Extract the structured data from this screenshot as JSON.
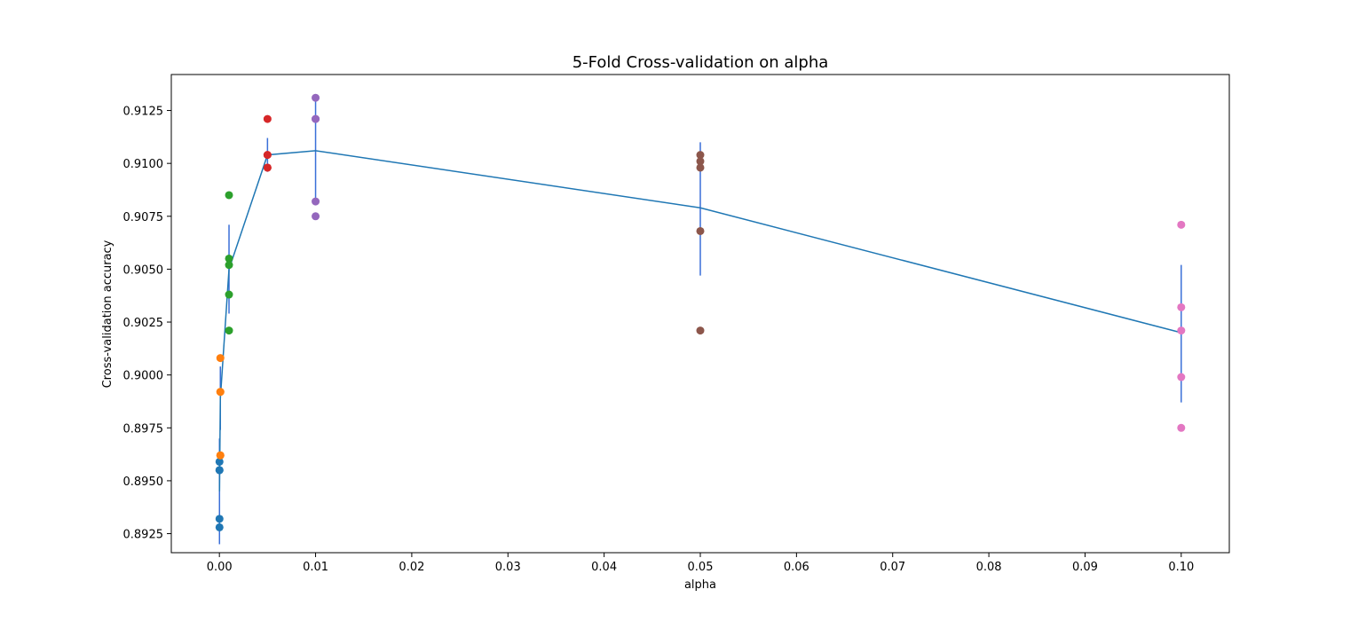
{
  "chart_data": {
    "type": "line",
    "title": "5-Fold Cross-validation on alpha",
    "xlabel": "alpha",
    "ylabel": "Cross-validation accuracy",
    "xlim": [
      -0.005,
      0.105
    ],
    "ylim": [
      0.8916,
      0.9142
    ],
    "xticks": [
      0.0,
      0.01,
      0.02,
      0.03,
      0.04,
      0.05,
      0.06,
      0.07,
      0.08,
      0.09,
      0.1
    ],
    "xtick_labels": [
      "0.00",
      "0.01",
      "0.02",
      "0.03",
      "0.04",
      "0.05",
      "0.06",
      "0.07",
      "0.08",
      "0.09",
      "0.10"
    ],
    "yticks": [
      0.8925,
      0.895,
      0.8975,
      0.9,
      0.9025,
      0.905,
      0.9075,
      0.91,
      0.9125
    ],
    "ytick_labels": [
      "0.8925",
      "0.8950",
      "0.8975",
      "0.9000",
      "0.9025",
      "0.9050",
      "0.9075",
      "0.9100",
      "0.9125"
    ],
    "grid": false,
    "legend": "none",
    "mean_line": {
      "color": "#1f77b4",
      "x": [
        1e-05,
        0.0001,
        0.001,
        0.005,
        0.01,
        0.05,
        0.1
      ],
      "y": [
        0.8945,
        0.8989,
        0.905,
        0.9104,
        0.9106,
        0.9079,
        0.902
      ]
    },
    "error_bars": {
      "color": "#3a6fd8",
      "x": [
        1e-05,
        0.0001,
        0.001,
        0.005,
        0.01,
        0.05,
        0.1
      ],
      "low": [
        0.892,
        0.8974,
        0.9029,
        0.9096,
        0.9081,
        0.9047,
        0.8987
      ],
      "high": [
        0.897,
        0.9004,
        0.9071,
        0.9112,
        0.913,
        0.911,
        0.9052
      ]
    },
    "fold_scores": [
      {
        "alpha": 1e-05,
        "color": "#1f77b4",
        "values": [
          0.8928,
          0.8932,
          0.8955,
          0.8959,
          0.8955
        ]
      },
      {
        "alpha": 0.0001,
        "color": "#ff7f0e",
        "values": [
          0.9008,
          0.8992,
          0.8962,
          0.8962,
          0.8992
        ]
      },
      {
        "alpha": 0.001,
        "color": "#2ca02c",
        "values": [
          0.9085,
          0.9055,
          0.9052,
          0.9038,
          0.9021
        ]
      },
      {
        "alpha": 0.005,
        "color": "#d62728",
        "values": [
          0.9121,
          0.9104,
          0.9098,
          0.9098,
          0.9104
        ]
      },
      {
        "alpha": 0.01,
        "color": "#9467bd",
        "values": [
          0.9131,
          0.9121,
          0.9082,
          0.9075,
          0.9121
        ]
      },
      {
        "alpha": 0.05,
        "color": "#8c564b",
        "values": [
          0.9104,
          0.9101,
          0.9098,
          0.9068,
          0.9021
        ]
      },
      {
        "alpha": 0.1,
        "color": "#e377c2",
        "values": [
          0.9071,
          0.9032,
          0.9021,
          0.8999,
          0.8975
        ]
      }
    ]
  }
}
